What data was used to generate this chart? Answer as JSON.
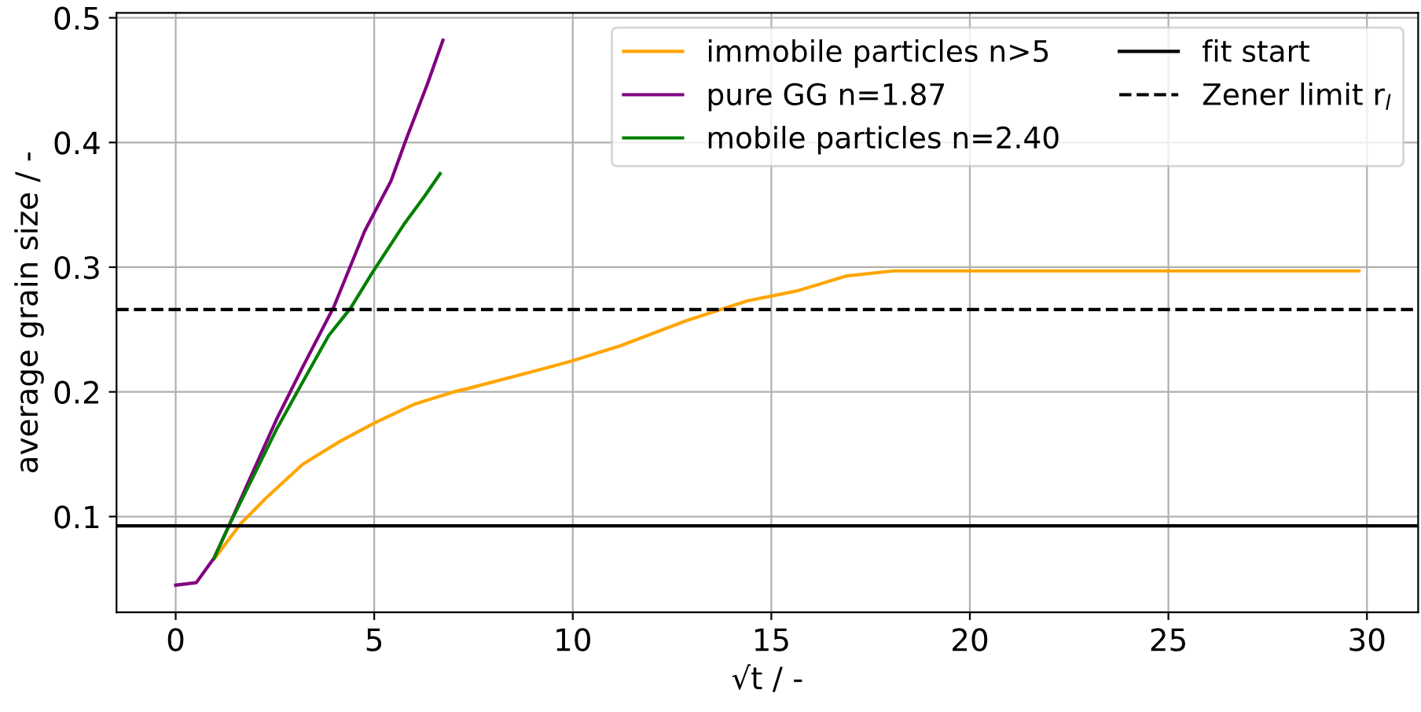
{
  "chart_data": {
    "type": "line",
    "xlabel": "√t / -",
    "ylabel": "average grain size / -",
    "xlim": [
      -1.49,
      31.29
    ],
    "ylim": [
      0.0232,
      0.504
    ],
    "xticks": [
      0,
      5,
      10,
      15,
      20,
      25,
      30
    ],
    "yticks": [
      0.1,
      0.2,
      0.3,
      0.4,
      0.5
    ],
    "grid": true,
    "legend": "top right",
    "line_style": "solid",
    "marker": "none",
    "series": [
      {
        "name": "immobile particles n>5",
        "color": "#ffa500",
        "x": [
          0.97,
          1.63,
          2.28,
          3.2,
          4.12,
          5.0,
          6.0,
          7.0,
          7.4,
          9.2,
          10.0,
          11.2,
          12.85,
          14.4,
          15.65,
          16.9,
          18.07,
          29.8
        ],
        "values": [
          0.066,
          0.094,
          0.115,
          0.142,
          0.16,
          0.175,
          0.19,
          0.2,
          0.203,
          0.218,
          0.225,
          0.237,
          0.257,
          0.273,
          0.281,
          0.293,
          0.297,
          0.297
        ]
      },
      {
        "name": "pure GG n=1.87",
        "color": "#800080",
        "x": [
          0,
          0.52,
          0.97,
          1.36,
          1.89,
          2.54,
          3.2,
          3.98,
          4.76,
          5.42,
          5.81,
          6.34,
          6.73
        ],
        "values": [
          0.045,
          0.047,
          0.067,
          0.094,
          0.132,
          0.178,
          0.22,
          0.268,
          0.329,
          0.369,
          0.403,
          0.447,
          0.482
        ]
      },
      {
        "name": "mobile particles n=2.40",
        "color": "#008000",
        "x": [
          0.97,
          1.36,
          1.89,
          2.54,
          3.2,
          3.85,
          4.4,
          4.96,
          5.74,
          6.27,
          6.66
        ],
        "values": [
          0.067,
          0.094,
          0.128,
          0.17,
          0.208,
          0.245,
          0.267,
          0.296,
          0.334,
          0.357,
          0.375
        ]
      }
    ],
    "ref_lines": [
      {
        "axis": "y",
        "value": 0.0925,
        "label": "fit start",
        "color": "#000000",
        "line_style": "solid"
      },
      {
        "axis": "y",
        "value": 0.266,
        "label": "Zener limit r$_{l}$",
        "color": "#000000",
        "line_style": "dashed"
      }
    ]
  }
}
